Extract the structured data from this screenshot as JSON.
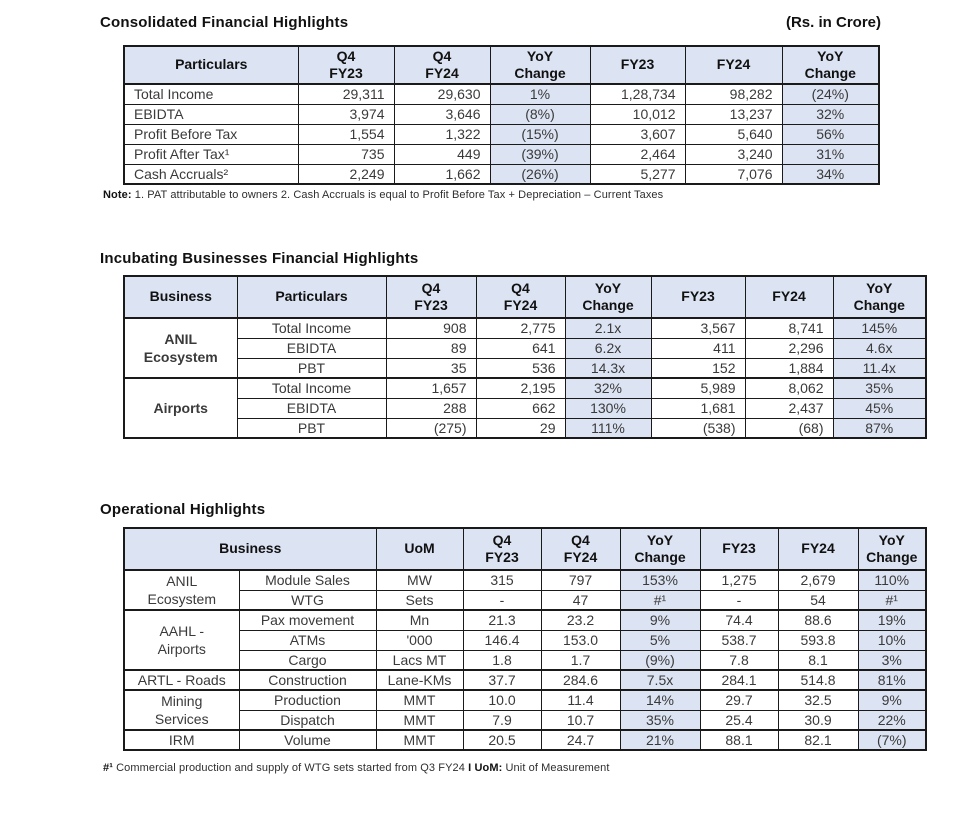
{
  "colors": {
    "header_bg": "#dce3f2",
    "shade_bg": "#dce3f2",
    "border": "#1a1a1a"
  },
  "consolidated": {
    "title": "Consolidated Financial Highlights",
    "unit_label": "(Rs. in Crore)",
    "headers": [
      "Particulars",
      "Q4\nFY23",
      "Q4\nFY24",
      "YoY\nChange",
      "FY23",
      "FY24",
      "YoY\nChange"
    ],
    "rows": [
      {
        "label": "Total Income",
        "values": [
          "29,311",
          "29,630",
          "1%",
          "1,28,734",
          "98,282",
          "(24%)"
        ]
      },
      {
        "label": "EBIDTA",
        "values": [
          "3,974",
          "3,646",
          "(8%)",
          "10,012",
          "13,237",
          "32%"
        ]
      },
      {
        "label": "Profit Before Tax",
        "values": [
          "1,554",
          "1,322",
          "(15%)",
          "3,607",
          "5,640",
          "56%"
        ]
      },
      {
        "label": "Profit After Tax¹",
        "values": [
          "735",
          "449",
          "(39%)",
          "2,464",
          "3,240",
          "31%"
        ]
      },
      {
        "label": "Cash Accruals²",
        "values": [
          "2,249",
          "1,662",
          "(26%)",
          "5,277",
          "7,076",
          "34%"
        ]
      }
    ],
    "note_label": "Note:",
    "note_text": " 1. PAT attributable to owners 2. Cash Accruals is equal to Profit Before Tax + Depreciation – Current Taxes"
  },
  "incubating": {
    "title": "Incubating Businesses Financial Highlights",
    "headers": [
      "Business",
      "Particulars",
      "Q4\nFY23",
      "Q4\nFY24",
      "YoY\nChange",
      "FY23",
      "FY24",
      "YoY\nChange"
    ],
    "groups": [
      {
        "business": "ANIL\nEcosystem",
        "rows": [
          {
            "label": "Total Income",
            "values": [
              "908",
              "2,775",
              "2.1x",
              "3,567",
              "8,741",
              "145%"
            ]
          },
          {
            "label": "EBIDTA",
            "values": [
              "89",
              "641",
              "6.2x",
              "411",
              "2,296",
              "4.6x"
            ]
          },
          {
            "label": "PBT",
            "values": [
              "35",
              "536",
              "14.3x",
              "152",
              "1,884",
              "11.4x"
            ]
          }
        ]
      },
      {
        "business": "Airports",
        "rows": [
          {
            "label": "Total Income",
            "values": [
              "1,657",
              "2,195",
              "32%",
              "5,989",
              "8,062",
              "35%"
            ]
          },
          {
            "label": "EBIDTA",
            "values": [
              "288",
              "662",
              "130%",
              "1,681",
              "2,437",
              "45%"
            ]
          },
          {
            "label": "PBT",
            "values": [
              "(275)",
              "29",
              "111%",
              "(538)",
              "(68)",
              "87%"
            ]
          }
        ]
      }
    ]
  },
  "operational": {
    "title": "Operational Highlights",
    "headers": [
      "Business",
      "UoM",
      "Q4\nFY23",
      "Q4\nFY24",
      "YoY\nChange",
      "FY23",
      "FY24",
      "YoY\nChange"
    ],
    "groups": [
      {
        "business": "ANIL\nEcosystem",
        "rows": [
          {
            "label": "Module Sales",
            "uom": "MW",
            "values": [
              "315",
              "797",
              "153%",
              "1,275",
              "2,679",
              "110%"
            ]
          },
          {
            "label": "WTG",
            "uom": "Sets",
            "values": [
              "-",
              "47",
              "#¹",
              "-",
              "54",
              "#¹"
            ]
          }
        ]
      },
      {
        "business": "AAHL -\nAirports",
        "rows": [
          {
            "label": "Pax movement",
            "uom": "Mn",
            "values": [
              "21.3",
              "23.2",
              "9%",
              "74.4",
              "88.6",
              "19%"
            ]
          },
          {
            "label": "ATMs",
            "uom": "'000",
            "values": [
              "146.4",
              "153.0",
              "5%",
              "538.7",
              "593.8",
              "10%"
            ]
          },
          {
            "label": "Cargo",
            "uom": "Lacs MT",
            "values": [
              "1.8",
              "1.7",
              "(9%)",
              "7.8",
              "8.1",
              "3%"
            ]
          }
        ]
      },
      {
        "business": "ARTL - Roads",
        "rows": [
          {
            "label": "Construction",
            "uom": "Lane-KMs",
            "values": [
              "37.7",
              "284.6",
              "7.5x",
              "284.1",
              "514.8",
              "81%"
            ]
          }
        ]
      },
      {
        "business": "Mining\nServices",
        "rows": [
          {
            "label": "Production",
            "uom": "MMT",
            "values": [
              "10.0",
              "11.4",
              "14%",
              "29.7",
              "32.5",
              "9%"
            ]
          },
          {
            "label": "Dispatch",
            "uom": "MMT",
            "values": [
              "7.9",
              "10.7",
              "35%",
              "25.4",
              "30.9",
              "22%"
            ]
          }
        ]
      },
      {
        "business": "IRM",
        "rows": [
          {
            "label": "Volume",
            "uom": "MMT",
            "values": [
              "20.5",
              "24.7",
              "21%",
              "88.1",
              "82.1",
              "(7%)"
            ]
          }
        ]
      }
    ],
    "footnote_marker": "#¹",
    "footnote_text": " Commercial production and supply of WTG sets started from Q3 FY24 ",
    "footnote_uom_label": "I UoM:",
    "footnote_uom_text": " Unit of Measurement"
  }
}
